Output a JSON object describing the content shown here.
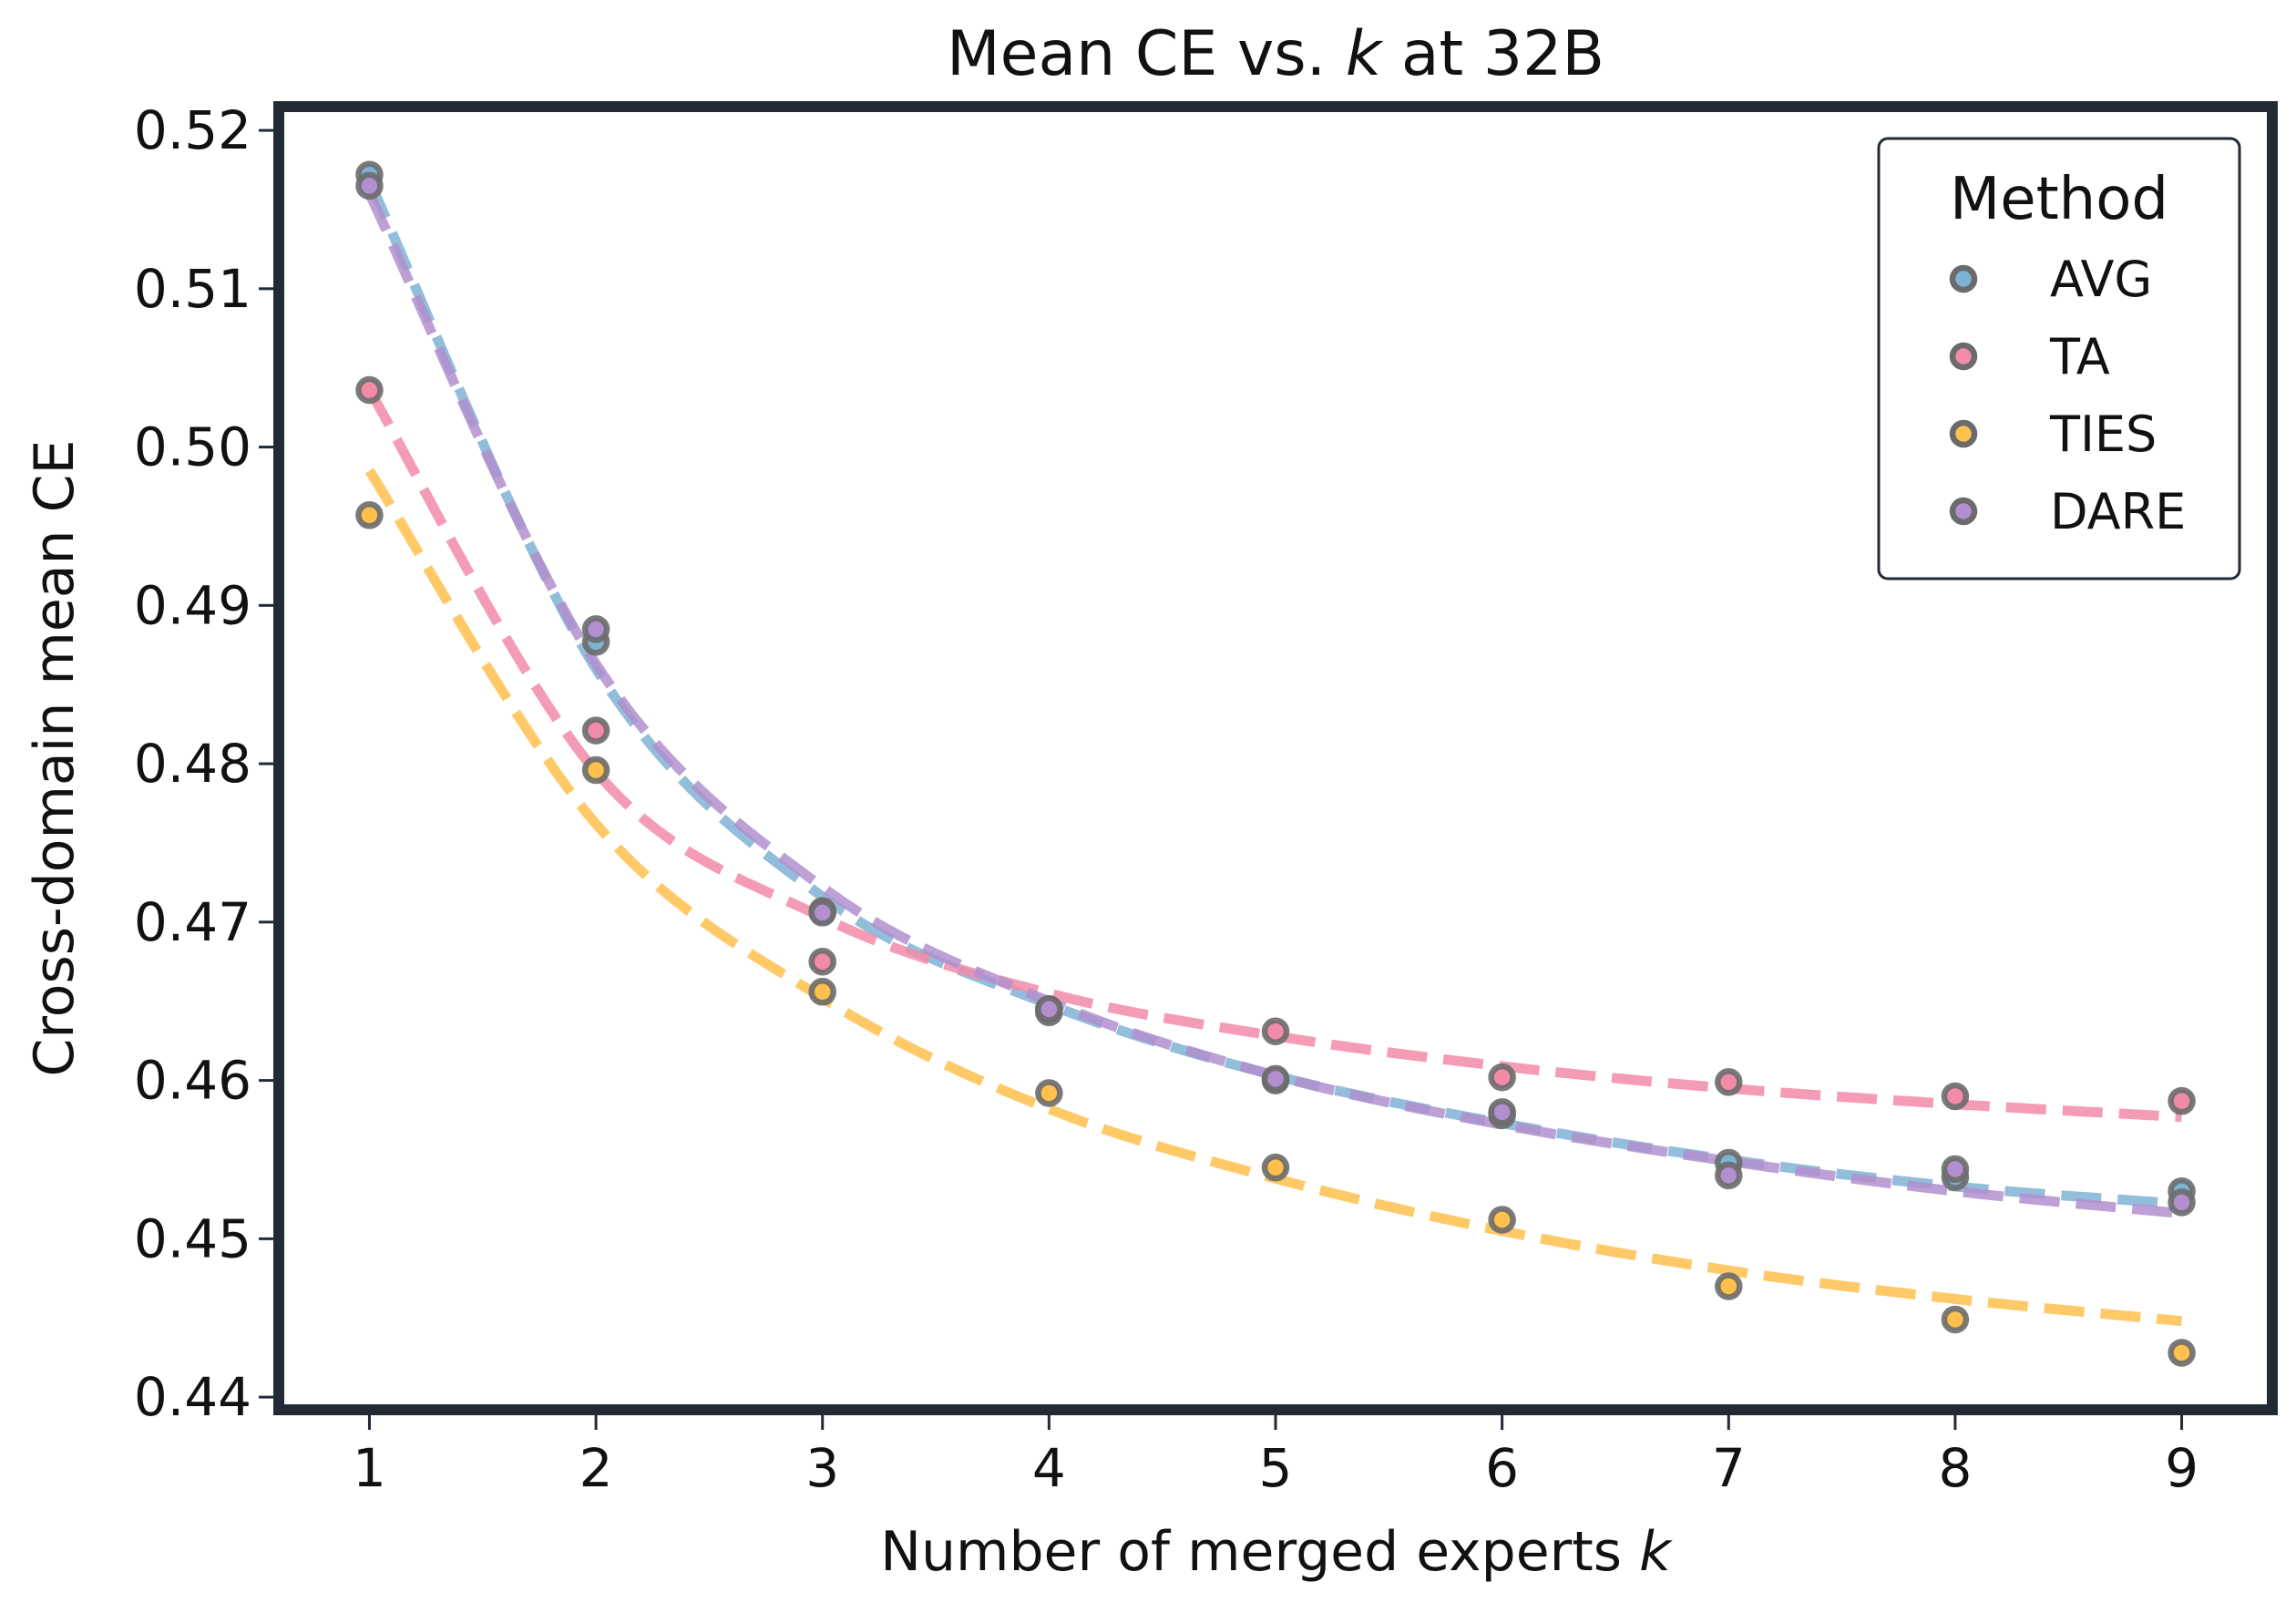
{
  "chart_data": {
    "type": "scatter",
    "title": "Mean CE vs. k at 32B",
    "title_parts": [
      "Mean CE vs. ",
      "k",
      " at 32B"
    ],
    "xlabel": "Number of merged experts k",
    "xlabel_parts": [
      "Number of merged experts ",
      "k"
    ],
    "ylabel": "Cross-domain mean CE",
    "xlim": [
      0.6,
      9.4
    ],
    "ylim": [
      0.4392,
      0.5215
    ],
    "x_ticks": [
      1,
      2,
      3,
      4,
      5,
      6,
      7,
      8,
      9
    ],
    "x_tick_labels": [
      "1",
      "2",
      "3",
      "4",
      "5",
      "6",
      "7",
      "8",
      "9"
    ],
    "y_ticks": [
      0.44,
      0.45,
      0.46,
      0.47,
      0.48,
      0.49,
      0.5,
      0.51,
      0.52
    ],
    "y_tick_labels": [
      "0.44",
      "0.45",
      "0.46",
      "0.47",
      "0.48",
      "0.49",
      "0.50",
      "0.51",
      "0.52"
    ],
    "grid": false,
    "legend": {
      "title": "Method",
      "placement": "top-right"
    },
    "x": [
      1,
      2,
      3,
      4,
      5,
      6,
      7,
      8,
      9
    ],
    "series": [
      {
        "name": "AVG",
        "color": "#7fb3d5",
        "values": [
          0.5172,
          0.4877,
          0.4707,
          0.4643,
          0.46,
          0.4578,
          0.4548,
          0.4539,
          0.453
        ],
        "fit": [
          0.5168,
          0.486,
          0.4716,
          0.4648,
          0.4603,
          0.4573,
          0.455,
          0.4533,
          0.4522
        ]
      },
      {
        "name": "TA",
        "color": "#f28ba8",
        "values": [
          0.5036,
          0.4821,
          0.4675,
          0.4645,
          0.4631,
          0.4602,
          0.4599,
          0.459,
          0.4587
        ],
        "fit": [
          0.5036,
          0.4795,
          0.4703,
          0.4655,
          0.4628,
          0.4609,
          0.4595,
          0.4585,
          0.4577
        ]
      },
      {
        "name": "TIES",
        "color": "#ffc04d",
        "values": [
          0.4957,
          0.4796,
          0.4656,
          0.4592,
          0.4545,
          0.4512,
          0.447,
          0.4449,
          0.4428
        ],
        "fit": [
          0.4985,
          0.4762,
          0.4652,
          0.4582,
          0.4538,
          0.4505,
          0.448,
          0.4462,
          0.4448
        ]
      },
      {
        "name": "DARE",
        "color": "#b28fce",
        "values": [
          0.5165,
          0.4885,
          0.4706,
          0.4645,
          0.4601,
          0.458,
          0.454,
          0.4544,
          0.4523
        ],
        "fit": [
          0.516,
          0.4863,
          0.4722,
          0.465,
          0.4603,
          0.4572,
          0.4549,
          0.453,
          0.4516
        ]
      }
    ]
  }
}
